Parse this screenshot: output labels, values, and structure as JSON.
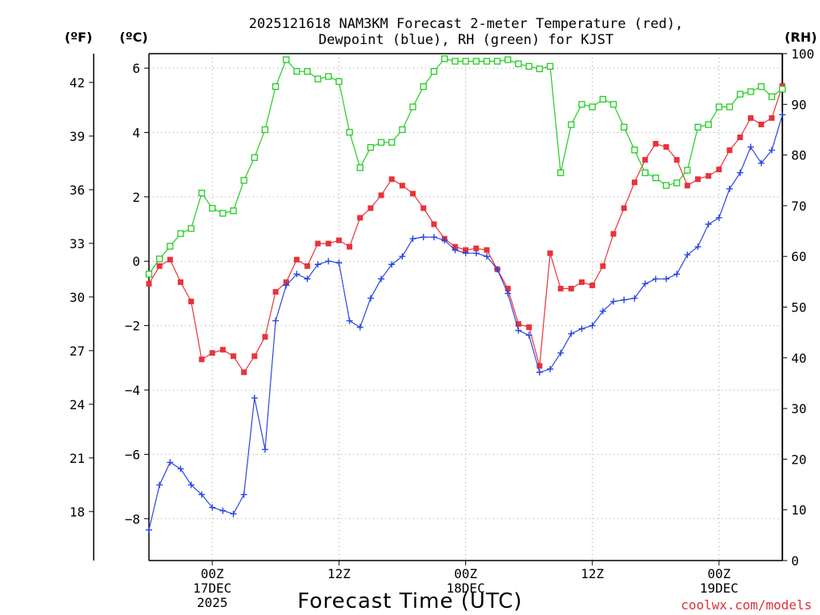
{
  "chart_data": {
    "type": "line",
    "title_lines": [
      "2025121618 NAM3KM Forecast 2-meter Temperature (red),",
      "Dewpoint (blue), RH (green) for KJST"
    ],
    "xlabel": "Forecast Time (UTC)",
    "credit": "coolwx.com/models",
    "left_unit_f": "(ºF)",
    "left_unit_c": "(ºC)",
    "right_unit": "(RH)",
    "x_hours_start": 18,
    "x_range": [
      18,
      78
    ],
    "c_range": [
      -9.3,
      6.45
    ],
    "rh_range": [
      0,
      100
    ],
    "c_ticks": [
      6,
      4,
      2,
      0,
      -2,
      -4,
      -6,
      -8
    ],
    "c_tick_labels": [
      "6",
      "4",
      "2",
      "0",
      "−2",
      "−4",
      "−6",
      "−8"
    ],
    "f_ticks": [
      42,
      39,
      36,
      33,
      30,
      27,
      24,
      21,
      18
    ],
    "rh_ticks": [
      100,
      90,
      80,
      70,
      60,
      50,
      40,
      30,
      20,
      10,
      0
    ],
    "x_ticks": [
      {
        "hour": 24,
        "lines": [
          "00Z",
          "17DEC",
          "2025"
        ]
      },
      {
        "hour": 36,
        "lines": [
          "12Z"
        ]
      },
      {
        "hour": 48,
        "lines": [
          "00Z",
          "18DEC"
        ]
      },
      {
        "hour": 60,
        "lines": [
          "12Z"
        ]
      },
      {
        "hour": 72,
        "lines": [
          "00Z",
          "19DEC"
        ]
      }
    ],
    "series": [
      {
        "name": "Temperature",
        "color": "#e8333a",
        "marker": "filled-square",
        "axis": "c",
        "values": [
          -0.7,
          -0.15,
          0.05,
          -0.65,
          -1.25,
          -3.05,
          -2.85,
          -2.75,
          -2.95,
          -3.45,
          -2.95,
          -2.35,
          -0.95,
          -0.65,
          0.05,
          -0.15,
          0.55,
          0.55,
          0.65,
          0.45,
          1.35,
          1.65,
          2.05,
          2.55,
          2.35,
          2.1,
          1.65,
          1.15,
          0.7,
          0.45,
          0.35,
          0.4,
          0.35,
          -0.25,
          -0.85,
          -1.95,
          -2.05,
          -3.25,
          0.25,
          -0.85,
          -0.85,
          -0.65,
          -0.75,
          -0.15,
          0.85,
          1.65,
          2.45,
          3.15,
          3.65,
          3.55,
          3.15,
          2.35,
          2.55,
          2.65,
          2.85,
          3.45,
          3.85,
          4.45,
          4.25,
          4.45,
          5.45
        ]
      },
      {
        "name": "Dewpoint",
        "color": "#2a46e0",
        "marker": "plus",
        "axis": "c",
        "values": [
          -8.35,
          -6.95,
          -6.25,
          -6.45,
          -6.95,
          -7.25,
          -7.65,
          -7.75,
          -7.85,
          -7.25,
          -4.25,
          -5.85,
          -1.85,
          -0.75,
          -0.4,
          -0.55,
          -0.1,
          0.0,
          -0.05,
          -1.85,
          -2.05,
          -1.15,
          -0.55,
          -0.1,
          0.15,
          0.7,
          0.75,
          0.75,
          0.65,
          0.35,
          0.25,
          0.25,
          0.15,
          -0.25,
          -1.0,
          -2.15,
          -2.3,
          -3.45,
          -3.35,
          -2.85,
          -2.25,
          -2.1,
          -2.0,
          -1.55,
          -1.25,
          -1.2,
          -1.15,
          -0.7,
          -0.55,
          -0.55,
          -0.4,
          0.2,
          0.45,
          1.15,
          1.35,
          2.25,
          2.75,
          3.55,
          3.05,
          3.45,
          4.55
        ]
      },
      {
        "name": "RH",
        "color": "#22cc22",
        "marker": "open-square",
        "axis": "rh",
        "values": [
          56.5,
          59.5,
          62,
          64.5,
          65.5,
          72.5,
          69.5,
          68.5,
          69,
          75,
          79.5,
          85,
          93.5,
          98.8,
          96.5,
          96.5,
          95,
          95.5,
          94.5,
          84.5,
          77.5,
          81.5,
          82.5,
          82.5,
          85,
          89.5,
          93.5,
          96.5,
          99,
          98.5,
          98.5,
          98.5,
          98.5,
          98.5,
          98.8,
          98,
          97.5,
          97,
          97.5,
          76.5,
          86,
          90,
          89.5,
          91,
          90,
          85.5,
          81,
          76.5,
          75.5,
          74,
          74.5,
          77,
          85.5,
          86,
          89.5,
          89.5,
          92,
          92.5,
          93.5,
          91.5,
          93
        ]
      }
    ]
  }
}
